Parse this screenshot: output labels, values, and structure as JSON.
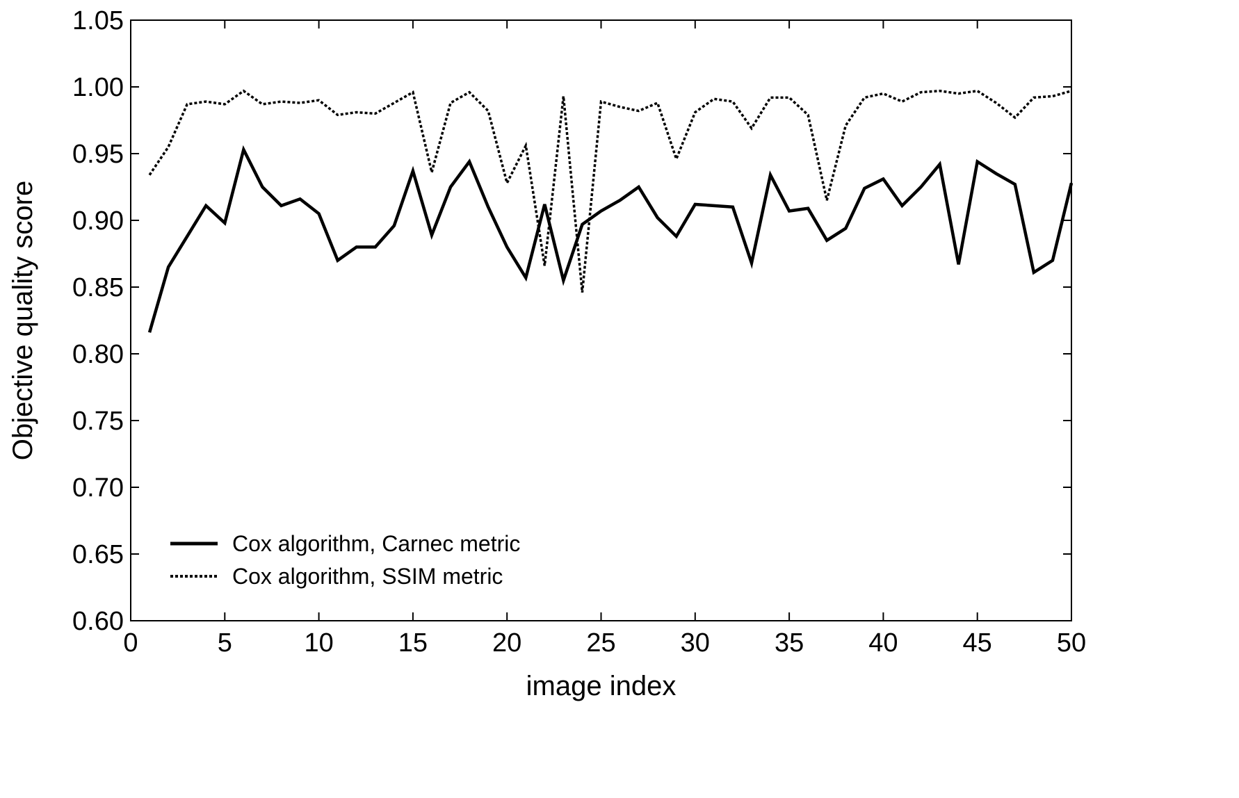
{
  "chart_data": {
    "type": "line",
    "xlabel": "image index",
    "ylabel": "Objective quality score",
    "xlim": [
      0,
      50
    ],
    "ylim": [
      0.6,
      1.05
    ],
    "xticks": [
      0,
      5,
      10,
      15,
      20,
      25,
      30,
      35,
      40,
      45,
      50
    ],
    "xtick_labels": [
      "0",
      "5",
      "10",
      "15",
      "20",
      "25",
      "30",
      "35",
      "40",
      "45",
      "50"
    ],
    "yticks": [
      0.6,
      0.65,
      0.7,
      0.75,
      0.8,
      0.85,
      0.9,
      0.95,
      1.0,
      1.05
    ],
    "ytick_labels": [
      "0.60",
      "0.65",
      "0.70",
      "0.75",
      "0.80",
      "0.85",
      "0.90",
      "0.95",
      "1.00",
      "1.05"
    ],
    "grid": false,
    "legend_position": "lower-left",
    "x": [
      1,
      2,
      3,
      4,
      5,
      6,
      7,
      8,
      9,
      10,
      11,
      12,
      13,
      14,
      15,
      16,
      17,
      18,
      19,
      20,
      21,
      22,
      23,
      24,
      25,
      26,
      27,
      28,
      29,
      30,
      31,
      32,
      33,
      34,
      35,
      36,
      37,
      38,
      39,
      40,
      41,
      42,
      43,
      44,
      45,
      46,
      47,
      48,
      49,
      50
    ],
    "series": [
      {
        "name": "Cox algorithm, Carnec metric",
        "style": "solid",
        "color": "#000000",
        "values": [
          0.816,
          0.865,
          0.888,
          0.911,
          0.898,
          0.953,
          0.925,
          0.911,
          0.916,
          0.905,
          0.87,
          0.88,
          0.88,
          0.896,
          0.937,
          0.889,
          0.925,
          0.944,
          0.91,
          0.88,
          0.857,
          0.912,
          0.855,
          0.897,
          0.907,
          0.915,
          0.925,
          0.902,
          0.888,
          0.912,
          0.911,
          0.91,
          0.868,
          0.934,
          0.907,
          0.909,
          0.885,
          0.894,
          0.924,
          0.931,
          0.911,
          0.925,
          0.942,
          0.867,
          0.944,
          0.935,
          0.927,
          0.861,
          0.87,
          0.928
        ]
      },
      {
        "name": "Cox algorithm, SSIM metric",
        "style": "dotted",
        "color": "#000000",
        "values": [
          0.934,
          0.955,
          0.987,
          0.989,
          0.987,
          0.997,
          0.987,
          0.989,
          0.988,
          0.99,
          0.979,
          0.981,
          0.98,
          0.988,
          0.996,
          0.936,
          0.988,
          0.996,
          0.982,
          0.928,
          0.956,
          0.866,
          0.993,
          0.846,
          0.989,
          0.985,
          0.982,
          0.988,
          0.946,
          0.981,
          0.991,
          0.989,
          0.969,
          0.992,
          0.992,
          0.979,
          0.915,
          0.971,
          0.992,
          0.995,
          0.989,
          0.996,
          0.997,
          0.995,
          0.997,
          0.988,
          0.977,
          0.992,
          0.993,
          0.997
        ]
      }
    ]
  }
}
